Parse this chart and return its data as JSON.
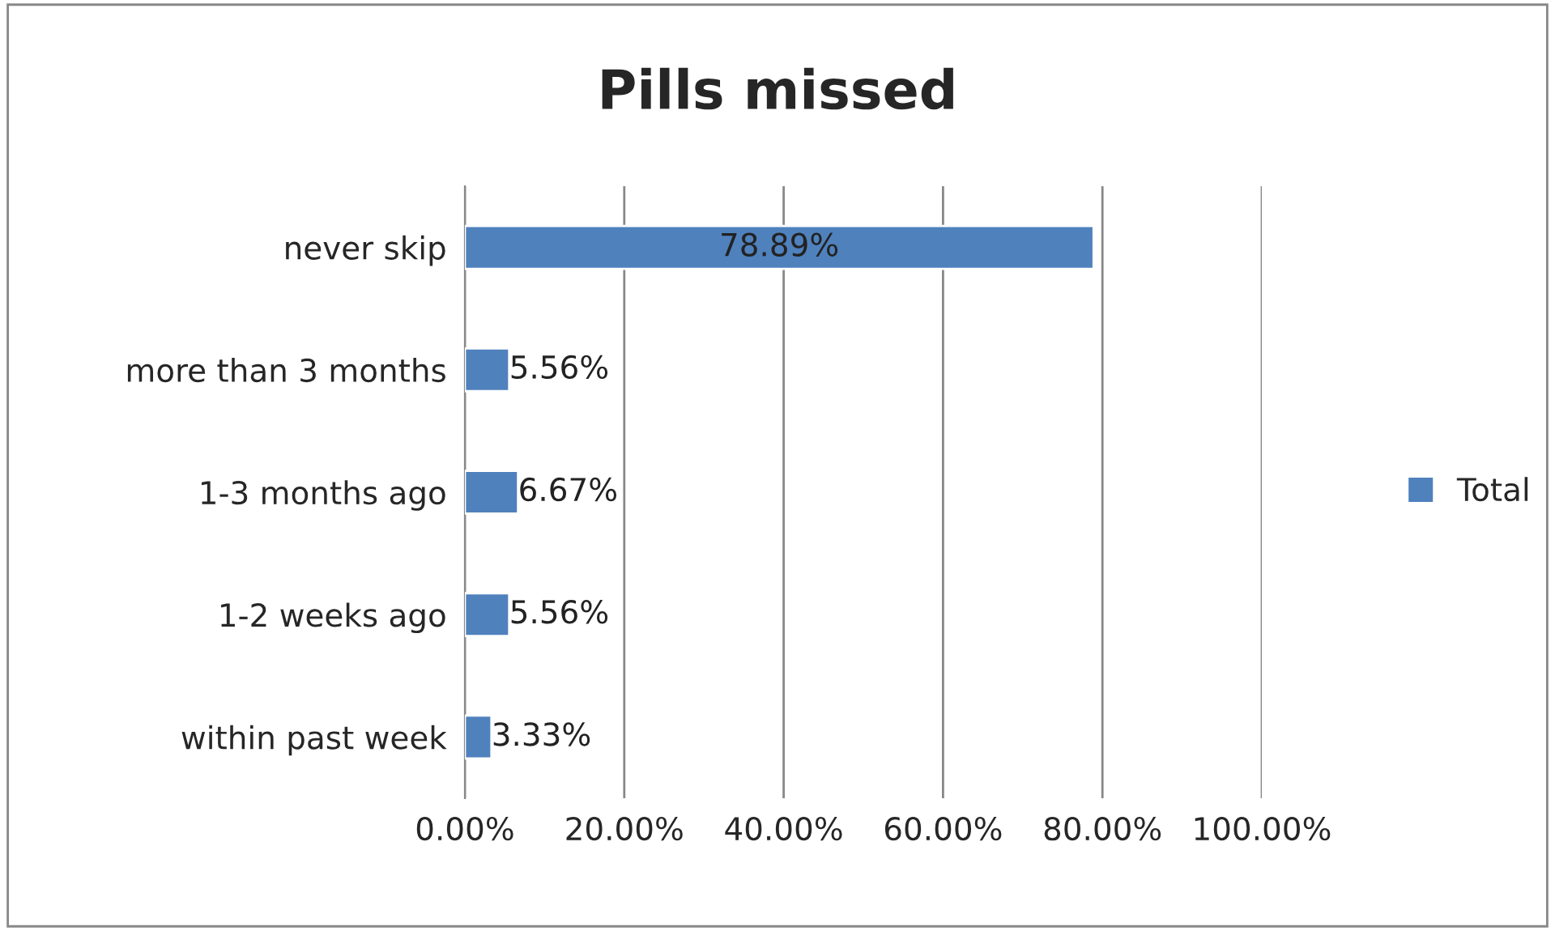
{
  "chart_data": {
    "type": "bar",
    "title": "Pills missed",
    "orientation": "horizontal",
    "categories": [
      "never skip",
      "more than 3 months",
      "1-3 months ago",
      "1-2 weeks ago",
      "within past week"
    ],
    "series": [
      {
        "name": "Total",
        "color": "#4f81bd",
        "values": [
          78.89,
          5.56,
          6.67,
          5.56,
          3.33
        ],
        "value_labels": [
          "78.89%",
          "5.56%",
          "6.67%",
          "5.56%",
          "3.33%"
        ]
      }
    ],
    "xlim": [
      0,
      100
    ],
    "xticks": [
      {
        "value": 0,
        "label": "0.00%"
      },
      {
        "value": 20,
        "label": "20.00%"
      },
      {
        "value": 40,
        "label": "40.00%"
      },
      {
        "value": 60,
        "label": "60.00%"
      },
      {
        "value": 80,
        "label": "80.00%"
      },
      {
        "value": 100,
        "label": "100.00%"
      }
    ],
    "grid": "x",
    "legend": "right"
  }
}
